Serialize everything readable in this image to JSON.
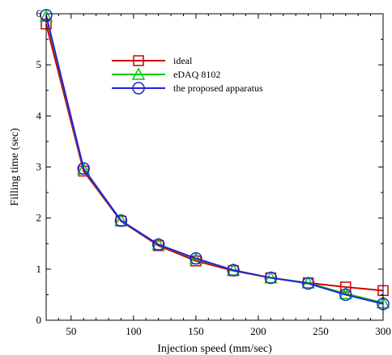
{
  "chart_data": {
    "type": "line",
    "title": "",
    "xlabel": "Injection speed (mm/sec)",
    "ylabel": "Filling time (sec)",
    "xlim": [
      30,
      300
    ],
    "ylim": [
      0,
      6
    ],
    "xticks": [
      50,
      100,
      150,
      200,
      250,
      300
    ],
    "yticks": [
      0,
      1,
      2,
      3,
      4,
      5,
      6
    ],
    "grid": false,
    "legend_position": "top-center",
    "x": [
      30,
      60,
      90,
      120,
      150,
      180,
      210,
      240,
      270,
      300
    ],
    "series": [
      {
        "name": "ideal",
        "color": "#cc0000",
        "marker": "square",
        "values": [
          5.8,
          2.92,
          1.94,
          1.46,
          1.16,
          0.97,
          0.83,
          0.73,
          0.65,
          0.58
        ]
      },
      {
        "name": "eDAQ 8102",
        "color": "#00cc00",
        "marker": "triangle",
        "values": [
          5.95,
          2.96,
          1.95,
          1.48,
          1.2,
          0.98,
          0.83,
          0.73,
          0.52,
          0.34
        ]
      },
      {
        "name": "the proposed apparatus",
        "color": "#2222dd",
        "marker": "circle",
        "values": [
          5.97,
          2.97,
          1.95,
          1.48,
          1.21,
          0.98,
          0.83,
          0.72,
          0.5,
          0.32
        ]
      }
    ]
  }
}
